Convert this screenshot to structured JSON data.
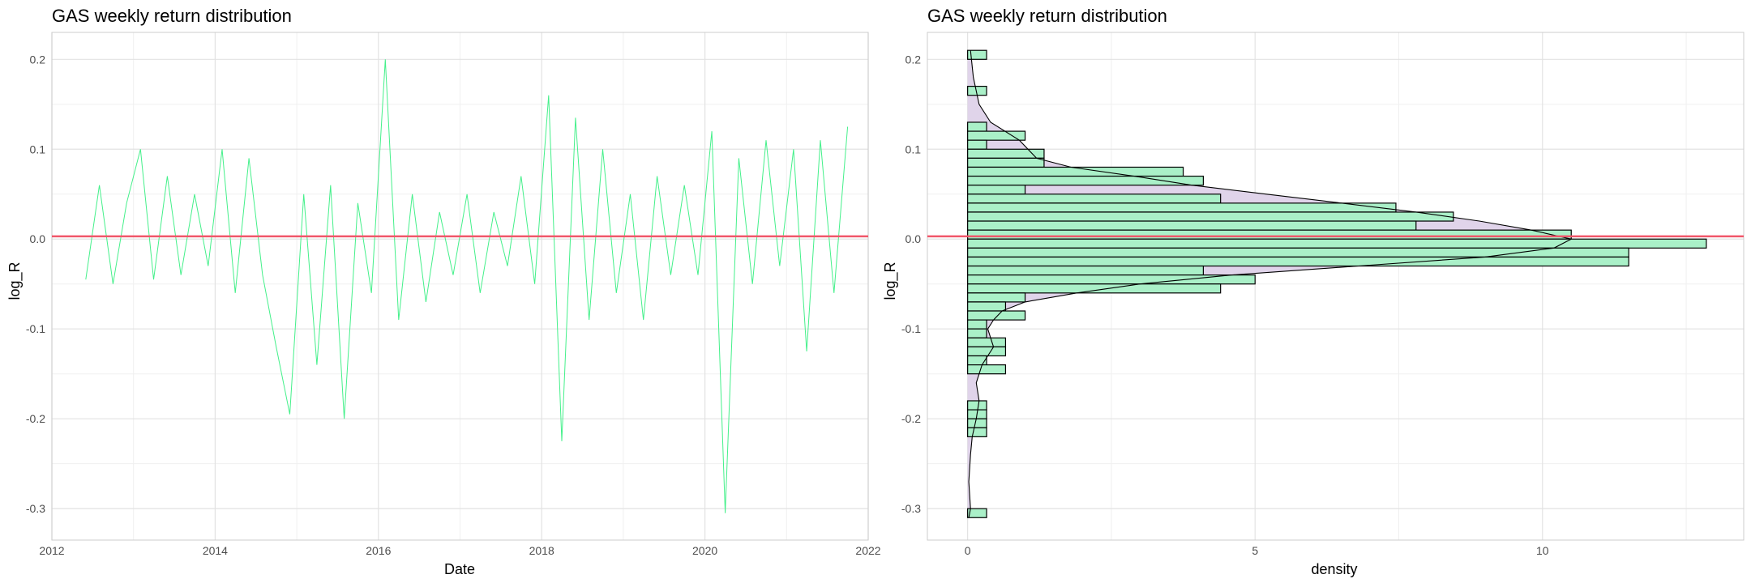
{
  "chart_data": [
    {
      "type": "line",
      "title": "GAS weekly return distribution",
      "xlabel": "Date",
      "ylabel": "log_R",
      "xlim": [
        "2012-01-01",
        "2022-01-01"
      ],
      "ylim": [
        -0.335,
        0.23
      ],
      "x_ticks": [
        "2012",
        "2014",
        "2016",
        "2018",
        "2020",
        "2022"
      ],
      "y_ticks": [
        "0.2",
        "0.1",
        "0.0",
        "-0.1",
        "-0.2",
        "-0.3"
      ],
      "grid": true,
      "line_color": "#44f08a",
      "hline": {
        "y": 0.003,
        "color": "#f0576a"
      },
      "series": [
        {
          "x": [
            "2012-06-01",
            "2012-08-01",
            "2012-10-01",
            "2012-12-01",
            "2013-02-01",
            "2013-04-01",
            "2013-06-01",
            "2013-08-01",
            "2013-10-01",
            "2013-12-01",
            "2014-02-01",
            "2014-04-01",
            "2014-06-01",
            "2014-08-01",
            "2014-10-01",
            "2014-12-01",
            "2015-02-01",
            "2015-04-01",
            "2015-06-01",
            "2015-08-01",
            "2015-10-01",
            "2015-12-01",
            "2016-02-01",
            "2016-04-01",
            "2016-06-01",
            "2016-08-01",
            "2016-10-01",
            "2016-12-01",
            "2017-02-01",
            "2017-04-01",
            "2017-06-01",
            "2017-08-01",
            "2017-10-01",
            "2017-12-01",
            "2018-02-01",
            "2018-04-01",
            "2018-06-01",
            "2018-08-01",
            "2018-10-01",
            "2018-12-01",
            "2019-02-01",
            "2019-04-01",
            "2019-06-01",
            "2019-08-01",
            "2019-10-01",
            "2019-12-01",
            "2020-02-01",
            "2020-04-01",
            "2020-06-01",
            "2020-08-01",
            "2020-10-01",
            "2020-12-01",
            "2021-02-01",
            "2021-04-01",
            "2021-06-01",
            "2021-08-01",
            "2021-10-01"
          ],
          "values": [
            -0.045,
            0.06,
            -0.05,
            0.04,
            0.1,
            -0.045,
            0.07,
            -0.04,
            0.05,
            -0.03,
            0.1,
            -0.06,
            0.09,
            -0.04,
            -0.12,
            -0.195,
            0.05,
            -0.14,
            0.06,
            -0.2,
            0.04,
            -0.06,
            0.2,
            -0.09,
            0.05,
            -0.07,
            0.03,
            -0.04,
            0.05,
            -0.06,
            0.03,
            -0.03,
            0.07,
            -0.05,
            0.16,
            -0.225,
            0.135,
            -0.09,
            0.1,
            -0.06,
            0.05,
            -0.09,
            0.07,
            -0.04,
            0.06,
            -0.04,
            0.12,
            -0.305,
            0.09,
            -0.05,
            0.11,
            -0.03,
            0.1,
            -0.125,
            0.11,
            -0.06,
            0.125
          ]
        }
      ]
    },
    {
      "type": "bar",
      "orientation": "horizontal",
      "title": "GAS weekly return distribution",
      "xlabel": "density",
      "ylabel": "log_R",
      "xlim": [
        -0.7,
        13.5
      ],
      "ylim": [
        -0.335,
        0.23
      ],
      "x_ticks": [
        "0",
        "5",
        "10"
      ],
      "y_ticks": [
        "0.2",
        "0.1",
        "0.0",
        "-0.1",
        "-0.2",
        "-0.3"
      ],
      "grid": true,
      "bar_fill": "#aaf0c8",
      "bar_stroke": "#000000",
      "density_fill": "#e0d4ea",
      "hline": {
        "y": 0.003,
        "color": "#f0576a"
      },
      "bin_width": 0.01,
      "bin_centers": [
        0.205,
        0.165,
        0.125,
        0.115,
        0.105,
        0.095,
        0.085,
        0.075,
        0.065,
        0.055,
        0.045,
        0.035,
        0.025,
        0.015,
        0.005,
        -0.005,
        -0.015,
        -0.025,
        -0.035,
        -0.045,
        -0.055,
        -0.065,
        -0.075,
        -0.085,
        -0.095,
        -0.105,
        -0.115,
        -0.125,
        -0.135,
        -0.145,
        -0.185,
        -0.195,
        -0.205,
        -0.215,
        -0.305
      ],
      "densities": [
        0.33,
        0.33,
        0.33,
        1.0,
        0.33,
        1.33,
        1.33,
        3.75,
        4.1,
        1.0,
        4.4,
        7.45,
        8.45,
        7.8,
        10.5,
        12.85,
        11.5,
        11.5,
        4.1,
        5.0,
        4.4,
        1.0,
        0.66,
        1.0,
        0.33,
        0.33,
        0.66,
        0.66,
        0.33,
        0.66,
        0.33,
        0.33,
        0.33,
        0.33,
        0.33
      ],
      "density_curve": {
        "y": [
          0.21,
          0.18,
          0.15,
          0.13,
          0.11,
          0.09,
          0.08,
          0.07,
          0.06,
          0.05,
          0.04,
          0.03,
          0.02,
          0.01,
          0.0,
          -0.01,
          -0.02,
          -0.03,
          -0.04,
          -0.05,
          -0.06,
          -0.07,
          -0.08,
          -0.09,
          -0.1,
          -0.11,
          -0.12,
          -0.13,
          -0.14,
          -0.16,
          -0.18,
          -0.2,
          -0.22,
          -0.24,
          -0.27,
          -0.3,
          -0.31
        ],
        "x": [
          0.05,
          0.1,
          0.2,
          0.4,
          0.9,
          1.2,
          1.8,
          2.9,
          3.9,
          5.2,
          6.5,
          7.8,
          8.9,
          9.8,
          10.5,
          10.2,
          9.0,
          6.8,
          4.6,
          3.0,
          1.9,
          1.0,
          0.6,
          0.45,
          0.35,
          0.4,
          0.45,
          0.35,
          0.25,
          0.15,
          0.2,
          0.15,
          0.08,
          0.05,
          0.02,
          0.05,
          0.02
        ]
      }
    }
  ]
}
